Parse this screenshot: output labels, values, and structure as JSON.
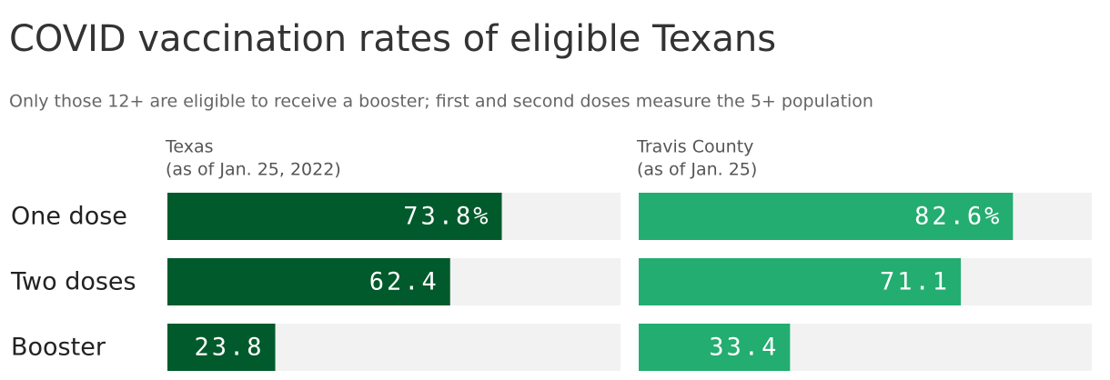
{
  "title": "COVID vaccination rates of eligible Texans",
  "subtitle": "Only those 12+ are eligible to receive a booster; first and second doses measure the 5+ population",
  "categories": [
    "One dose",
    "Two doses",
    "Booster"
  ],
  "chart_data": [
    {
      "type": "bar",
      "orientation": "horizontal",
      "title": "Texas",
      "subtitle": "(as of Jan. 25, 2022)",
      "values": [
        73.8,
        62.4,
        23.8
      ],
      "value_labels": [
        "73.8%",
        "62.4",
        "23.8"
      ],
      "color": "#005a2b",
      "xlim": [
        0,
        100
      ]
    },
    {
      "type": "bar",
      "orientation": "horizontal",
      "title": "Travis County",
      "subtitle": "(as of Jan. 25)",
      "values": [
        82.6,
        71.1,
        33.4
      ],
      "value_labels": [
        "82.6%",
        "71.1",
        "33.4"
      ],
      "color": "#23ad70",
      "xlim": [
        0,
        100
      ]
    }
  ]
}
